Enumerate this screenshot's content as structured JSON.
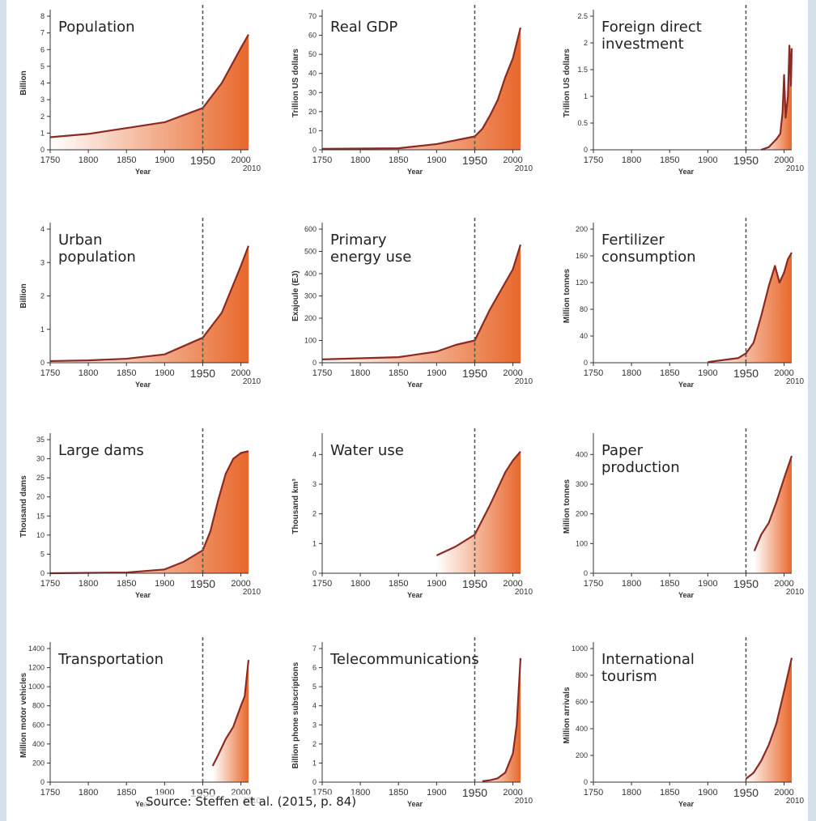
{
  "source": "Source: Steffen et al. (2015, p. 84)",
  "colors": {
    "line": "#8b2a23",
    "fill": "#e8682c",
    "fill_light": "#ffffff",
    "marker": "#555555"
  },
  "chart_data": [
    {
      "type": "area",
      "title": "Population",
      "ylabel": "Billion",
      "xlabel": "Year",
      "xlim": [
        1750,
        2010
      ],
      "ylim": [
        0,
        8
      ],
      "yticks": [
        "0",
        "1",
        "2",
        "3",
        "4",
        "5",
        "6",
        "7",
        "8"
      ],
      "xticks": [
        "1750",
        "1800",
        "1850",
        "1900",
        "1950",
        "2000"
      ],
      "marker_x": 1950,
      "end_label": "2010",
      "x": [
        1750,
        1800,
        1850,
        1900,
        1950,
        1975,
        2000,
        2010
      ],
      "y": [
        0.75,
        0.95,
        1.3,
        1.65,
        2.5,
        4.0,
        6.1,
        6.9
      ]
    },
    {
      "type": "area",
      "title": "Real GDP",
      "ylabel": "Trillion US dollars",
      "xlabel": "Year",
      "xlim": [
        1750,
        2010
      ],
      "ylim": [
        0,
        70
      ],
      "yticks": [
        "0",
        "10",
        "20",
        "30",
        "40",
        "50",
        "60",
        "70"
      ],
      "xticks": [
        "1750",
        "1800",
        "1850",
        "1900",
        "1950",
        "2000"
      ],
      "marker_x": 1950,
      "end_label": "2010",
      "x": [
        1750,
        1850,
        1900,
        1950,
        1960,
        1970,
        1980,
        1990,
        2000,
        2010
      ],
      "y": [
        0.5,
        0.8,
        3,
        7,
        11,
        18,
        26,
        38,
        48,
        64
      ]
    },
    {
      "type": "area",
      "title": "Foreign direct investment",
      "ylabel": "Trillion US dollars",
      "xlabel": "Year",
      "xlim": [
        1750,
        2010
      ],
      "ylim": [
        0,
        2.5
      ],
      "yticks": [
        "0",
        "0.5",
        "1",
        "1.5",
        "2",
        "2.5"
      ],
      "xticks": [
        "1750",
        "1800",
        "1850",
        "1900",
        "1950",
        "2000"
      ],
      "marker_x": 1950,
      "end_label": "2010",
      "x": [
        1970,
        1980,
        1990,
        1995,
        1998,
        2000,
        2002,
        2005,
        2007,
        2009,
        2010
      ],
      "y": [
        0.0,
        0.05,
        0.2,
        0.3,
        0.7,
        1.4,
        0.6,
        1.0,
        1.95,
        1.2,
        1.9
      ]
    },
    {
      "type": "area",
      "title": "Urban population",
      "ylabel": "Billion",
      "xlabel": "Year",
      "xlim": [
        1750,
        2010
      ],
      "ylim": [
        0,
        4
      ],
      "yticks": [
        "0",
        "1",
        "2",
        "3",
        "4"
      ],
      "xticks": [
        "1750",
        "1800",
        "1850",
        "1900",
        "1950",
        "2000"
      ],
      "marker_x": 1950,
      "end_label": "2010",
      "x": [
        1750,
        1800,
        1850,
        1900,
        1950,
        1975,
        2000,
        2010
      ],
      "y": [
        0.05,
        0.07,
        0.12,
        0.25,
        0.75,
        1.5,
        2.9,
        3.5
      ]
    },
    {
      "type": "area",
      "title": "Primary energy use",
      "ylabel": "Exajoule (EJ)",
      "xlabel": "Year",
      "xlim": [
        1750,
        2010
      ],
      "ylim": [
        0,
        600
      ],
      "yticks": [
        "0",
        "100",
        "200",
        "300",
        "400",
        "500",
        "600"
      ],
      "xticks": [
        "1750",
        "1800",
        "1850",
        "1900",
        "1950",
        "2000"
      ],
      "marker_x": 1950,
      "end_label": "2010",
      "x": [
        1750,
        1850,
        1900,
        1925,
        1950,
        1970,
        1990,
        2000,
        2010
      ],
      "y": [
        15,
        25,
        50,
        80,
        100,
        240,
        360,
        420,
        530
      ]
    },
    {
      "type": "area",
      "title": "Fertilizer consumption",
      "ylabel": "Million tonnes",
      "xlabel": "Year",
      "xlim": [
        1750,
        2010
      ],
      "ylim": [
        0,
        200
      ],
      "yticks": [
        "0",
        "40",
        "80",
        "120",
        "160",
        "200"
      ],
      "xticks": [
        "1750",
        "1800",
        "1850",
        "1900",
        "1950",
        "2000"
      ],
      "marker_x": 1950,
      "end_label": "2010",
      "x": [
        1900,
        1940,
        1950,
        1960,
        1970,
        1980,
        1988,
        1994,
        2000,
        2005,
        2010
      ],
      "y": [
        1,
        7,
        14,
        30,
        70,
        115,
        145,
        120,
        135,
        155,
        165
      ]
    },
    {
      "type": "area",
      "title": "Large dams",
      "ylabel": "Thousand dams",
      "xlabel": "Year",
      "xlim": [
        1750,
        2010
      ],
      "ylim": [
        0,
        35
      ],
      "yticks": [
        "0",
        "5",
        "10",
        "15",
        "20",
        "25",
        "30",
        "35"
      ],
      "xticks": [
        "1750",
        "1800",
        "1850",
        "1900",
        "1950",
        "2000"
      ],
      "marker_x": 1950,
      "end_label": "2010",
      "x": [
        1750,
        1850,
        1900,
        1925,
        1950,
        1960,
        1970,
        1980,
        1990,
        2000,
        2010
      ],
      "y": [
        0,
        0.2,
        1,
        3,
        6,
        11,
        19,
        26,
        30,
        31.5,
        32
      ]
    },
    {
      "type": "area",
      "title": "Water use",
      "ylabel": "Thousand km³",
      "xlabel": "Year",
      "xlim": [
        1750,
        2010
      ],
      "ylim": [
        0,
        4.5
      ],
      "yticks": [
        "0",
        "1",
        "2",
        "3",
        "4"
      ],
      "xticks": [
        "1750",
        "1800",
        "1850",
        "1900",
        "1950",
        "2000"
      ],
      "marker_x": 1950,
      "end_label": "2010",
      "x": [
        1900,
        1925,
        1950,
        1970,
        1990,
        2000,
        2010
      ],
      "y": [
        0.6,
        0.9,
        1.3,
        2.3,
        3.4,
        3.8,
        4.1
      ]
    },
    {
      "type": "area",
      "title": "Paper production",
      "ylabel": "Million tonnes",
      "xlabel": "Year",
      "xlim": [
        1750,
        2010
      ],
      "ylim": [
        0,
        450
      ],
      "yticks": [
        "0",
        "100",
        "200",
        "300",
        "400"
      ],
      "xticks": [
        "1750",
        "1800",
        "1850",
        "1900",
        "1950",
        "2000"
      ],
      "marker_x": 1950,
      "end_label": "2010",
      "x": [
        1961,
        1970,
        1980,
        1990,
        2000,
        2010
      ],
      "y": [
        75,
        130,
        170,
        240,
        320,
        395
      ]
    },
    {
      "type": "area",
      "title": "Transportation",
      "ylabel": "Million motor vehicles",
      "xlabel": "Year",
      "xlim": [
        1750,
        2010
      ],
      "ylim": [
        0,
        1400
      ],
      "yticks": [
        "0",
        "200",
        "400",
        "600",
        "800",
        "1000",
        "1200",
        "1400"
      ],
      "xticks": [
        "1750",
        "1800",
        "1850",
        "1900",
        "1950",
        "2000"
      ],
      "marker_x": 1950,
      "end_label": "2010",
      "x": [
        1963,
        1970,
        1980,
        1990,
        2000,
        2005,
        2010
      ],
      "y": [
        170,
        280,
        450,
        580,
        800,
        900,
        1280
      ]
    },
    {
      "type": "area",
      "title": "Telecommunications",
      "ylabel": "Billion phone subscriptions",
      "xlabel": "Year",
      "xlim": [
        1750,
        2010
      ],
      "ylim": [
        0,
        7
      ],
      "yticks": [
        "0",
        "1",
        "2",
        "3",
        "4",
        "5",
        "6",
        "7"
      ],
      "xticks": [
        "1750",
        "1800",
        "1850",
        "1900",
        "1950",
        "2000"
      ],
      "marker_x": 1950,
      "end_label": "2010",
      "x": [
        1960,
        1970,
        1980,
        1990,
        2000,
        2005,
        2010
      ],
      "y": [
        0.05,
        0.1,
        0.2,
        0.5,
        1.5,
        3.0,
        6.5
      ]
    },
    {
      "type": "area",
      "title": "International tourism",
      "ylabel": "Million arrivals",
      "xlabel": "Year",
      "xlim": [
        1750,
        2010
      ],
      "ylim": [
        0,
        1000
      ],
      "yticks": [
        "0",
        "200",
        "400",
        "600",
        "800",
        "1000"
      ],
      "xticks": [
        "1750",
        "1800",
        "1850",
        "1900",
        "1950",
        "2000"
      ],
      "marker_x": 1950,
      "end_label": "2010",
      "x": [
        1950,
        1960,
        1970,
        1980,
        1990,
        2000,
        2010
      ],
      "y": [
        25,
        70,
        160,
        280,
        440,
        680,
        930
      ]
    }
  ]
}
